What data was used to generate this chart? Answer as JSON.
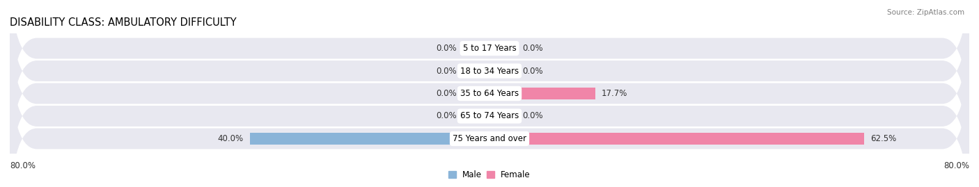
{
  "title": "DISABILITY CLASS: AMBULATORY DIFFICULTY",
  "source": "Source: ZipAtlas.com",
  "categories": [
    "5 to 17 Years",
    "18 to 34 Years",
    "35 to 64 Years",
    "65 to 74 Years",
    "75 Years and over"
  ],
  "male_values": [
    0.0,
    0.0,
    0.0,
    0.0,
    40.0
  ],
  "female_values": [
    0.0,
    0.0,
    17.7,
    0.0,
    62.5
  ],
  "male_color": "#8ab4d8",
  "female_color": "#f085a8",
  "row_bg_color": "#e8e8f0",
  "max_val": 80.0,
  "zero_stub": 4.5,
  "title_fontsize": 10.5,
  "label_fontsize": 8.5,
  "category_fontsize": 8.5,
  "source_fontsize": 7.5
}
